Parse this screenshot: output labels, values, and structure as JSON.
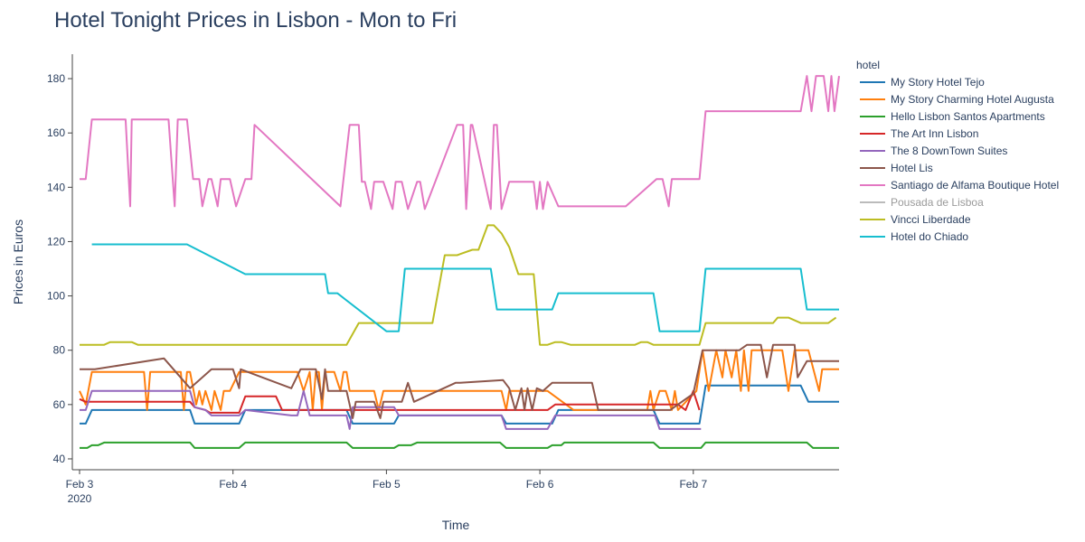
{
  "chart_data": {
    "type": "line",
    "title": "Hotel Tonight Prices in Lisbon - Mon to Fri",
    "xlabel": "Time",
    "ylabel": "Prices in Euros",
    "x_ticks": [
      {
        "t": 0,
        "label": "Feb 3",
        "sublabel": "2020"
      },
      {
        "t": 1,
        "label": "Feb 4"
      },
      {
        "t": 2,
        "label": "Feb 5"
      },
      {
        "t": 3,
        "label": "Feb 6"
      },
      {
        "t": 4,
        "label": "Feb 7"
      }
    ],
    "xlim": [
      0,
      4.95
    ],
    "ylim": [
      36,
      189
    ],
    "y_ticks": [
      40,
      60,
      80,
      100,
      120,
      140,
      160,
      180
    ],
    "legend": {
      "title": "hotel",
      "position": "right"
    },
    "series": [
      {
        "name": "My Story Hotel Tejo",
        "color": "#1f77b4",
        "x": [
          0,
          0.04,
          0.08,
          0.72,
          0.75,
          1.04,
          1.08,
          1.74,
          1.78,
          2.05,
          2.08,
          2.55,
          2.58,
          2.75,
          2.78,
          3.08,
          3.12,
          3.74,
          3.78,
          4.04,
          4.08,
          4.7,
          4.75,
          4.95
        ],
        "y": [
          53,
          53,
          58,
          58,
          53,
          53,
          58,
          58,
          53,
          53,
          56,
          56,
          56,
          56,
          53,
          53,
          58,
          58,
          53,
          53,
          67,
          67,
          61,
          61
        ]
      },
      {
        "name": "My Story Charming Hotel Augusta",
        "color": "#ff7f0e",
        "x": [
          0,
          0.04,
          0.08,
          0.42,
          0.44,
          0.46,
          0.66,
          0.68,
          0.7,
          0.72,
          0.76,
          0.78,
          0.8,
          0.82,
          0.86,
          0.88,
          0.92,
          0.94,
          0.98,
          1.04,
          1.08,
          1.42,
          1.46,
          1.5,
          1.52,
          1.54,
          1.56,
          1.58,
          1.6,
          1.66,
          1.7,
          1.72,
          1.74,
          1.76,
          1.78,
          1.82,
          1.92,
          1.95,
          1.98,
          2.0,
          2.35,
          2.75,
          2.78,
          2.8,
          3.05,
          3.22,
          3.7,
          3.72,
          3.74,
          3.78,
          3.82,
          3.86,
          3.88,
          3.9,
          4.02,
          4.06,
          4.1,
          4.15,
          4.19,
          4.21,
          4.25,
          4.28,
          4.31,
          4.33,
          4.36,
          4.38,
          4.42,
          4.58,
          4.62,
          4.66,
          4.75,
          4.82,
          4.84,
          4.95
        ],
        "y": [
          65,
          60,
          72,
          72,
          58,
          72,
          72,
          58,
          72,
          72,
          60,
          65,
          60,
          65,
          58,
          65,
          58,
          65,
          65,
          72,
          72,
          72,
          65,
          72,
          58,
          72,
          72,
          58,
          72,
          72,
          65,
          72,
          72,
          65,
          65,
          65,
          65,
          58,
          65,
          65,
          65,
          65,
          58,
          65,
          65,
          58,
          58,
          65,
          58,
          65,
          65,
          58,
          65,
          58,
          65,
          80,
          65,
          80,
          70,
          80,
          70,
          80,
          65,
          80,
          65,
          80,
          80,
          80,
          65,
          80,
          80,
          65,
          73,
          73
        ]
      },
      {
        "name": "Hello Lisbon Santos Apartments",
        "color": "#2ca02c",
        "x": [
          0,
          0.05,
          0.08,
          0.12,
          0.16,
          0.72,
          0.75,
          1.04,
          1.08,
          1.74,
          1.78,
          2.05,
          2.08,
          2.16,
          2.2,
          2.74,
          2.78,
          3.05,
          3.08,
          3.14,
          3.16,
          3.74,
          3.78,
          4.05,
          4.08,
          4.74,
          4.78,
          4.95
        ],
        "y": [
          44,
          44,
          45,
          45,
          46,
          46,
          44,
          44,
          46,
          46,
          44,
          44,
          45,
          45,
          46,
          46,
          44,
          44,
          45,
          45,
          46,
          46,
          44,
          44,
          46,
          46,
          44,
          44
        ]
      },
      {
        "name": "The Art Inn Lisbon",
        "color": "#d62728",
        "x": [
          0,
          0.04,
          0.08,
          0.72,
          0.75,
          0.82,
          0.85,
          1.04,
          1.08,
          1.28,
          1.32,
          1.74,
          1.78,
          2.0,
          3.05,
          3.1,
          3.9,
          3.95,
          4.0,
          4.04
        ],
        "y": [
          62,
          61,
          61,
          61,
          59,
          58,
          57,
          57,
          63,
          63,
          58,
          58,
          58,
          58,
          58,
          60,
          60,
          58,
          65,
          58
        ]
      },
      {
        "name": "The 8 DownTown Suites",
        "color": "#9467bd",
        "x": [
          0,
          0.04,
          0.08,
          0.72,
          0.75,
          0.82,
          0.86,
          1.04,
          1.08,
          1.38,
          1.42,
          1.46,
          1.5,
          1.74,
          1.76,
          1.78,
          2.0,
          2.05,
          2.08,
          2.75,
          2.78,
          3.05,
          3.1,
          3.75,
          3.78,
          4.05
        ],
        "y": [
          58,
          58,
          65,
          65,
          59,
          58,
          56,
          56,
          58,
          56,
          56,
          65,
          56,
          56,
          51,
          59,
          59,
          59,
          56,
          56,
          51,
          51,
          56,
          56,
          51,
          51
        ]
      },
      {
        "name": "Hotel Lis",
        "color": "#8c564b",
        "x": [
          0,
          0.1,
          0.55,
          0.72,
          0.78,
          0.86,
          1.0,
          1.04,
          1.05,
          1.38,
          1.44,
          1.54,
          1.58,
          1.6,
          1.62,
          1.74,
          1.78,
          1.8,
          1.92,
          1.96,
          1.98,
          2.1,
          2.14,
          2.18,
          2.45,
          2.48,
          2.76,
          2.8,
          2.84,
          2.88,
          2.9,
          2.92,
          2.95,
          2.98,
          3.02,
          3.08,
          3.34,
          3.38,
          3.6,
          3.7,
          3.85,
          3.9,
          4.0,
          4.06,
          4.1,
          4.15,
          4.3,
          4.35,
          4.44,
          4.48,
          4.52,
          4.66,
          4.68,
          4.74,
          4.95
        ],
        "y": [
          73,
          73,
          77,
          66,
          69,
          73,
          73,
          66,
          73,
          66,
          73,
          73,
          62,
          73,
          65,
          65,
          55,
          61,
          61,
          55,
          61,
          61,
          68,
          61,
          68,
          68,
          69,
          66,
          58,
          66,
          58,
          66,
          58,
          66,
          65,
          68,
          68,
          58,
          58,
          58,
          58,
          60,
          64,
          80,
          80,
          80,
          80,
          82,
          82,
          70,
          82,
          82,
          70,
          76,
          76
        ]
      },
      {
        "name": "Santiago de Alfama Boutique Hotel",
        "color": "#e377c2",
        "x": [
          0,
          0.04,
          0.08,
          0.3,
          0.33,
          0.34,
          0.58,
          0.62,
          0.64,
          0.7,
          0.74,
          0.78,
          0.8,
          0.84,
          0.86,
          0.9,
          0.92,
          0.98,
          1.02,
          1.08,
          1.12,
          1.14,
          1.7,
          1.76,
          1.8,
          1.82,
          1.84,
          1.86,
          1.9,
          1.92,
          1.98,
          2.04,
          2.06,
          2.1,
          2.14,
          2.2,
          2.22,
          2.25,
          2.46,
          2.5,
          2.52,
          2.55,
          2.56,
          2.68,
          2.7,
          2.72,
          2.75,
          2.8,
          2.96,
          2.98,
          3.0,
          3.02,
          3.05,
          3.12,
          3.5,
          3.56,
          3.76,
          3.8,
          3.84,
          3.86,
          4.0,
          4.04,
          4.08,
          4.7,
          4.74,
          4.77,
          4.8,
          4.85,
          4.88,
          4.9,
          4.92,
          4.95
        ],
        "y": [
          143,
          143,
          165,
          165,
          133,
          165,
          165,
          133,
          165,
          165,
          143,
          143,
          133,
          143,
          143,
          133,
          143,
          143,
          133,
          143,
          143,
          163,
          133,
          163,
          163,
          163,
          142,
          142,
          132,
          142,
          142,
          132,
          142,
          142,
          132,
          142,
          142,
          132,
          163,
          163,
          132,
          163,
          163,
          132,
          163,
          163,
          132,
          142,
          142,
          132,
          142,
          132,
          142,
          133,
          133,
          133,
          143,
          143,
          133,
          143,
          143,
          143,
          168,
          168,
          181,
          168,
          181,
          181,
          168,
          181,
          168,
          181
        ]
      },
      {
        "name": "Pousada de Lisboa",
        "color": "#bbbbbb",
        "dim_legend": true,
        "x": [],
        "y": []
      },
      {
        "name": "Vincci Liberdade",
        "color": "#bcbd22",
        "x": [
          0,
          0.08,
          0.16,
          0.2,
          0.34,
          0.38,
          0.72,
          1.04,
          1.42,
          1.52,
          1.6,
          1.74,
          1.82,
          2.0,
          2.04,
          2.08,
          2.16,
          2.3,
          2.38,
          2.42,
          2.46,
          2.56,
          2.6,
          2.66,
          2.7,
          2.75,
          2.8,
          2.86,
          2.96,
          3.0,
          3.05,
          3.1,
          3.14,
          3.2,
          3.32,
          3.36,
          3.62,
          3.66,
          3.7,
          3.74,
          3.78,
          4.0,
          4.04,
          4.08,
          4.12,
          4.52,
          4.55,
          4.62,
          4.7,
          4.76,
          4.82,
          4.88,
          4.93
        ],
        "y": [
          82,
          82,
          82,
          83,
          83,
          82,
          82,
          82,
          82,
          82,
          82,
          82,
          90,
          90,
          90,
          90,
          90,
          90,
          115,
          115,
          115,
          117,
          117,
          126,
          126,
          123,
          118,
          108,
          108,
          82,
          82,
          83,
          83,
          82,
          82,
          82,
          82,
          83,
          83,
          82,
          82,
          82,
          82,
          90,
          90,
          90,
          92,
          92,
          90,
          90,
          90,
          90,
          92
        ]
      },
      {
        "name": "Hotel do Chiado",
        "color": "#17becf",
        "x": [
          0.08,
          0.7,
          1.08,
          1.54,
          1.6,
          1.62,
          1.68,
          2.0,
          2.05,
          2.08,
          2.12,
          2.2,
          2.44,
          2.5,
          2.55,
          2.68,
          2.72,
          2.76,
          2.8,
          3.05,
          3.08,
          3.12,
          3.5,
          3.56,
          3.74,
          3.78,
          4.0,
          4.04,
          4.08,
          4.7,
          4.74,
          4.78,
          4.95
        ],
        "y": [
          119,
          119,
          108,
          108,
          108,
          101,
          101,
          87,
          87,
          87,
          110,
          110,
          110,
          110,
          110,
          110,
          95,
          95,
          95,
          95,
          95,
          101,
          101,
          101,
          101,
          87,
          87,
          87,
          110,
          110,
          95,
          95,
          95
        ]
      }
    ]
  }
}
